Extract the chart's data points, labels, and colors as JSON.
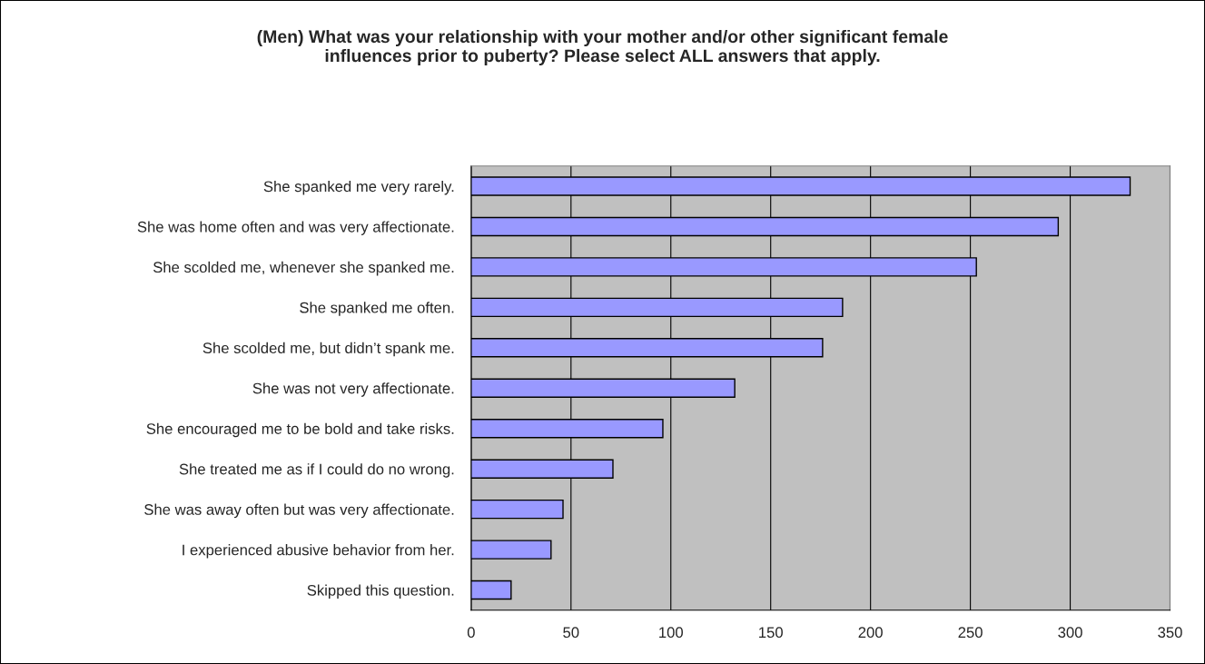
{
  "chart_data": {
    "type": "bar",
    "orientation": "horizontal",
    "title": "(Men) What was your relationship with your mother and/or other significant female\ninfluences prior to puberty? Please select ALL answers that apply.",
    "categories": [
      "She spanked me very rarely.",
      "She was home often and was very affectionate.",
      "She scolded me, whenever she spanked me.",
      "She spanked me often.",
      "She scolded me, but didn’t spank me.",
      "She was not very affectionate.",
      "She encouraged me to be bold and take risks.",
      "She treated me as if I could do no wrong.",
      "She was away often but was very affectionate.",
      "I experienced abusive behavior from her.",
      "Skipped this question."
    ],
    "values": [
      330,
      294,
      253,
      186,
      176,
      132,
      96,
      71,
      46,
      40,
      20
    ],
    "color": "#9999ff",
    "xlim": [
      0,
      350
    ],
    "xticks": [
      0,
      50,
      100,
      150,
      200,
      250,
      300,
      350
    ],
    "grid": "x"
  }
}
